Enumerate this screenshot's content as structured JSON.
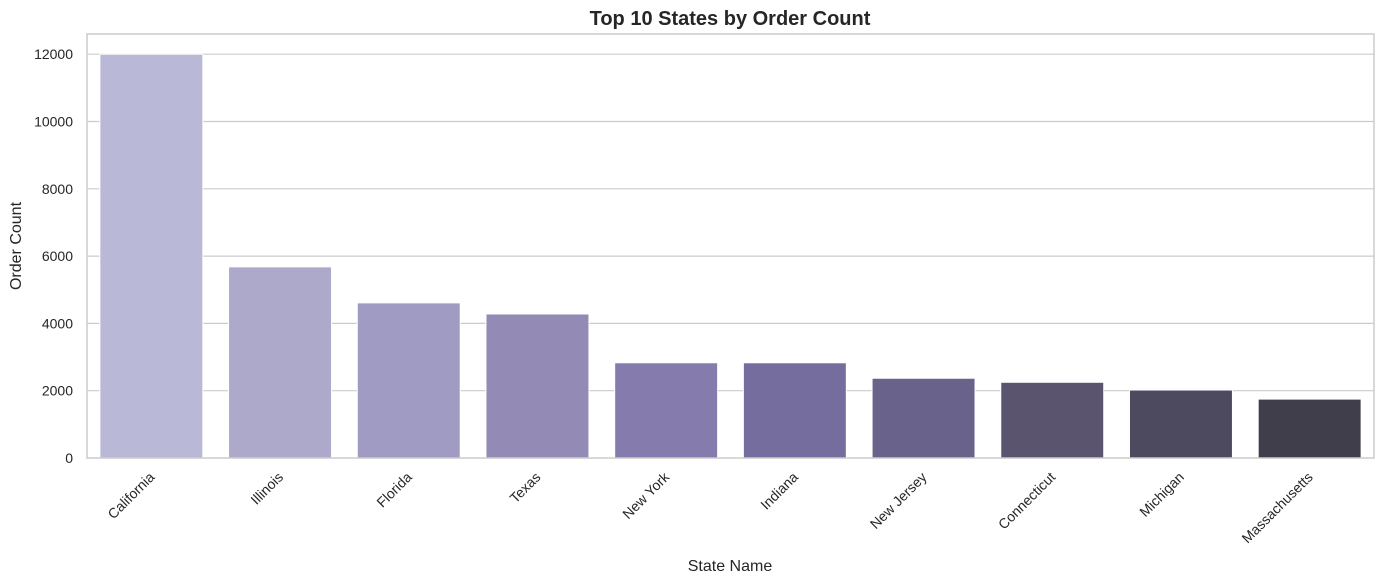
{
  "chart_data": {
    "type": "bar",
    "title": "Top 10 States by Order Count",
    "xlabel": "State Name",
    "ylabel": "Order Count",
    "categories": [
      "California",
      "Illinois",
      "Florida",
      "Texas",
      "New York",
      "Indiana",
      "New Jersey",
      "Connecticut",
      "Michigan",
      "Massachusetts"
    ],
    "values": [
      12000,
      5680,
      4610,
      4280,
      2830,
      2830,
      2370,
      2250,
      2020,
      1750
    ],
    "ylim": [
      0,
      12600
    ],
    "yticks": [
      0,
      2000,
      4000,
      6000,
      8000,
      10000,
      12000
    ],
    "grid": "horizontal",
    "colors": [
      "#b9b8d6",
      "#aca9cb",
      "#a09bc3",
      "#938bb6",
      "#857cad",
      "#766d9f",
      "#69628a",
      "#5a546f",
      "#4d495e",
      "#413e4b"
    ]
  }
}
